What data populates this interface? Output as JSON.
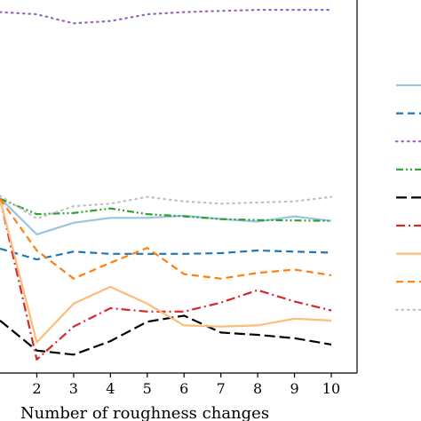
{
  "chart_data": {
    "type": "line",
    "xlabel": "Number of roughness changes",
    "ylabel": "",
    "title": "",
    "x_ticks": [
      2,
      3,
      4,
      5,
      6,
      7,
      8,
      9,
      10
    ],
    "xlim": [
      1,
      10.7
    ],
    "ylim": [
      0,
      100
    ],
    "grid": false,
    "legend_placement": "right (outside plot, partially cropped)",
    "series": [
      {
        "color": "#9ac5e0",
        "dash": "solid",
        "x": [
          1,
          2,
          3,
          4,
          5,
          6,
          7,
          8,
          9,
          10
        ],
        "y": [
          46.7,
          37.0,
          40.1,
          41.4,
          41.4,
          42.0,
          41.1,
          40.4,
          41.8,
          40.6
        ]
      },
      {
        "color": "#1f77b4",
        "dash": "dashed",
        "x": [
          1,
          2,
          3,
          4,
          5,
          6,
          7,
          8,
          9,
          10
        ],
        "y": [
          33.2,
          30.3,
          32.4,
          31.8,
          31.8,
          31.8,
          32.0,
          32.7,
          32.4,
          32.1
        ]
      },
      {
        "color": "#9467bd",
        "dash": "dotted",
        "x": [
          1,
          2,
          3,
          4,
          5,
          6,
          7,
          8,
          9,
          10
        ],
        "y": [
          96.3,
          95.7,
          93.3,
          93.9,
          95.7,
          96.3,
          96.6,
          96.9,
          96.9,
          96.9
        ]
      },
      {
        "color": "#2ca02c",
        "dash": "dashdotdot",
        "x": [
          1,
          2,
          3,
          4,
          5,
          6,
          7,
          8,
          9,
          10
        ],
        "y": [
          46.5,
          42.4,
          42.7,
          43.9,
          42.4,
          41.8,
          41.1,
          40.8,
          40.7,
          40.6
        ]
      },
      {
        "color": "#000000",
        "dash": "longdash",
        "x": [
          1,
          2,
          3,
          4,
          5,
          6,
          7,
          8,
          9,
          10
        ],
        "y": [
          14.0,
          6.0,
          4.9,
          8.5,
          13.7,
          15.3,
          10.8,
          10.2,
          9.3,
          7.6
        ]
      },
      {
        "color": "#d62728",
        "dash": "dashdot",
        "x": [
          1,
          2,
          3,
          4,
          5,
          6,
          7,
          8,
          9,
          10
        ],
        "y": [
          46.5,
          3.6,
          12.4,
          17.3,
          16.4,
          16.4,
          18.8,
          22.1,
          19.1,
          16.7
        ]
      },
      {
        "color": "#ffbb78",
        "dash": "solid",
        "x": [
          1,
          2,
          3,
          4,
          5,
          6,
          7,
          8,
          9,
          10
        ],
        "y": [
          46.5,
          8.2,
          18.5,
          23.0,
          18.5,
          12.7,
          12.4,
          12.7,
          14.5,
          14.0
        ]
      },
      {
        "color": "#ff7f0e",
        "dash": "dashed",
        "x": [
          1,
          2,
          3,
          4,
          5,
          6,
          7,
          8,
          9,
          10
        ],
        "y": [
          46.5,
          32.7,
          25.2,
          29.4,
          33.4,
          26.4,
          25.2,
          26.7,
          27.6,
          26.1
        ]
      },
      {
        "color": "#c0c0c0",
        "dash": "dotted",
        "x": [
          1,
          2,
          3,
          4,
          5,
          6,
          7,
          8,
          9,
          10
        ],
        "y": [
          47.3,
          41.2,
          44.5,
          45.2,
          47.0,
          45.8,
          45.2,
          45.5,
          45.8,
          47.0
        ]
      }
    ]
  }
}
